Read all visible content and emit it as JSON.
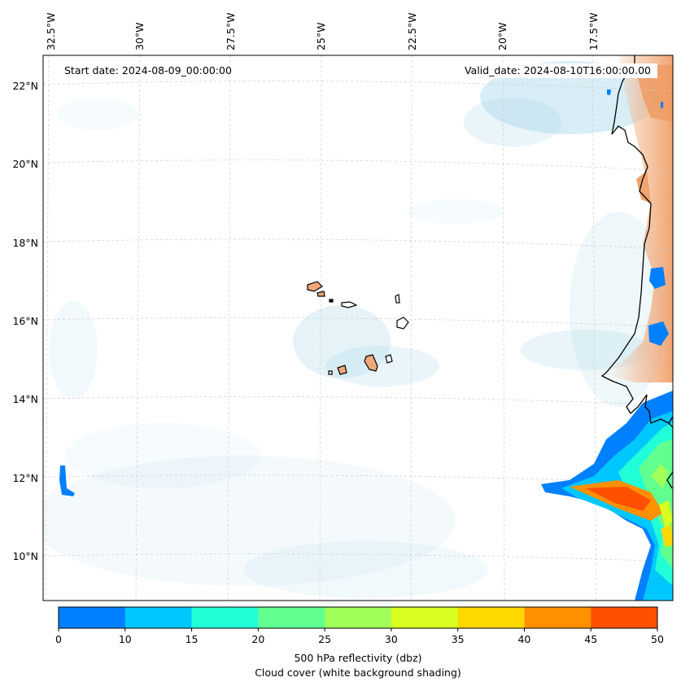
{
  "header": {
    "start_date": "Start date: 2024-08-09_00:00:00",
    "valid_date": "Valid_date: 2024-08-10T16:00:00.00"
  },
  "axes": {
    "lon_labels": [
      "32.5°W",
      "30°W",
      "27.5°W",
      "25°W",
      "22.5°W",
      "20°W",
      "17.5°W"
    ],
    "lat_labels": [
      "22°N",
      "20°N",
      "18°N",
      "16°N",
      "14°N",
      "12°N",
      "10°N"
    ]
  },
  "colorbar": {
    "ticks": [
      "0",
      "10",
      "15",
      "20",
      "25",
      "30",
      "35",
      "40",
      "45",
      "50"
    ],
    "colors": [
      "#0080ff",
      "#00c8ff",
      "#20ffd8",
      "#60ff90",
      "#a0ff58",
      "#d8ff20",
      "#ffd800",
      "#ff9000",
      "#ff5000"
    ],
    "label_line1": "500 hPa reflectivity (dbz)",
    "label_line2": "Cloud cover (white background shading)"
  },
  "colors": {
    "cloud": "#a8d8e8",
    "land": "#f0a878",
    "coast": "#000000",
    "grid": "#cccccc"
  }
}
